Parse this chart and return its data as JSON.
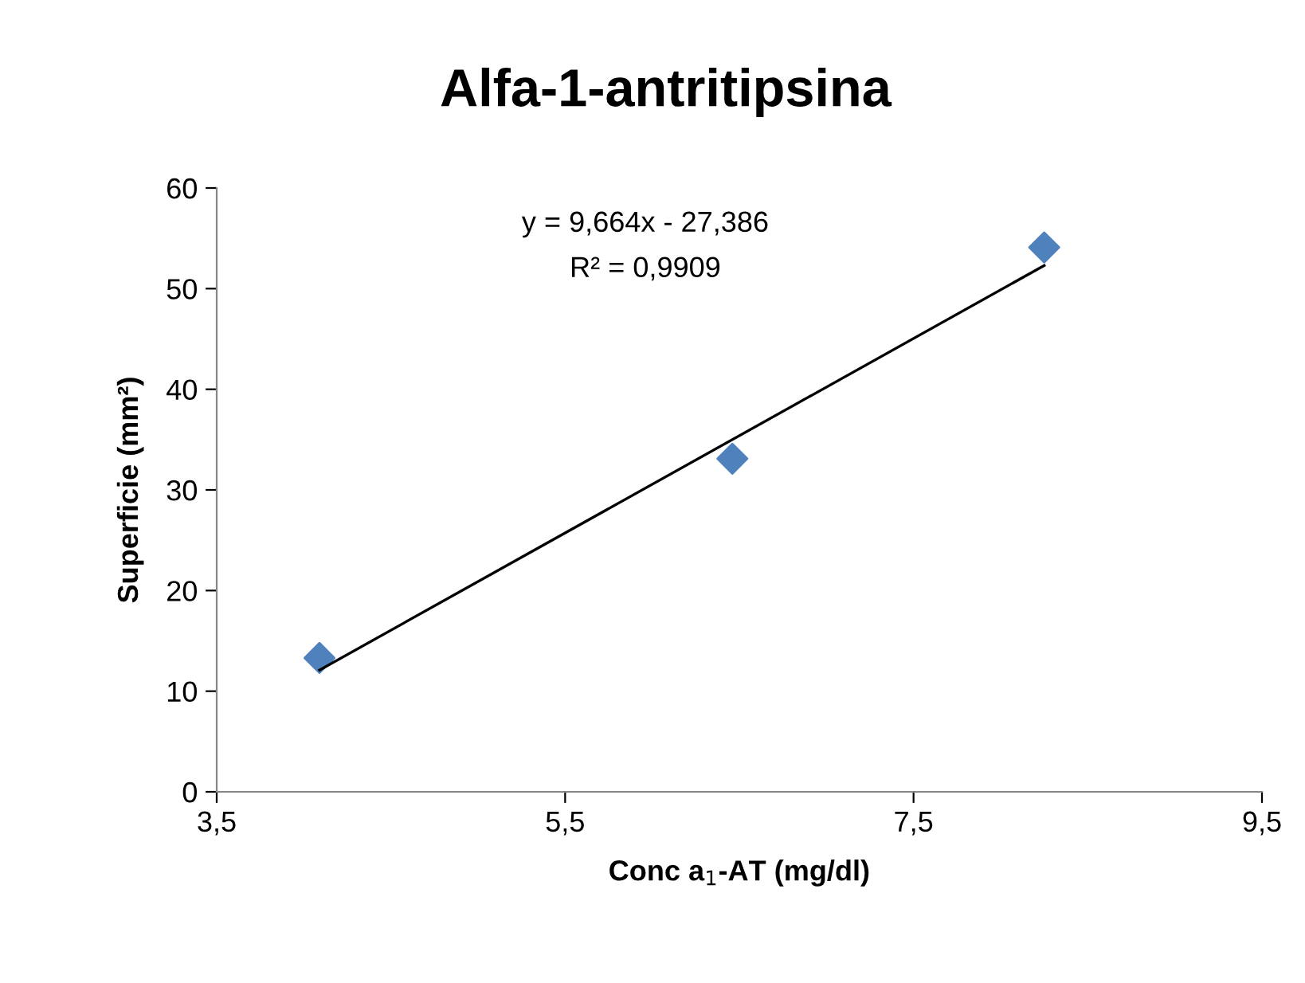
{
  "chart_data": {
    "type": "scatter",
    "title": "Alfa-1-antritipsina",
    "xlabel": "Conc a$_{1}$-AT (mg/dl)",
    "ylabel": "Superficie (mm²)",
    "xlim": [
      3.5,
      9.5
    ],
    "xticks": [
      {
        "value": 3.5,
        "label": "3,5"
      },
      {
        "value": 5.5,
        "label": "5,5"
      },
      {
        "value": 7.5,
        "label": "7,5"
      },
      {
        "value": 9.5,
        "label": "9,5"
      }
    ],
    "ylim": [
      0,
      60
    ],
    "yticks": [
      0,
      10,
      20,
      30,
      40,
      50,
      60
    ],
    "grid": false,
    "legend": false,
    "series": [
      {
        "color": "#4f81bd",
        "x": [
          4.09,
          6.46,
          8.25
        ],
        "values": [
          13.3,
          33.1,
          54.1
        ],
        "marker": "diamond"
      },
      {
        "type": "line",
        "color": "#000000",
        "x": [
          4.09,
          8.25
        ],
        "values": [
          12.1,
          52.3
        ],
        "line_style": "solid"
      }
    ],
    "annotations": [
      "y = 9,664x - 27,386",
      "R² = 0,9909"
    ]
  }
}
